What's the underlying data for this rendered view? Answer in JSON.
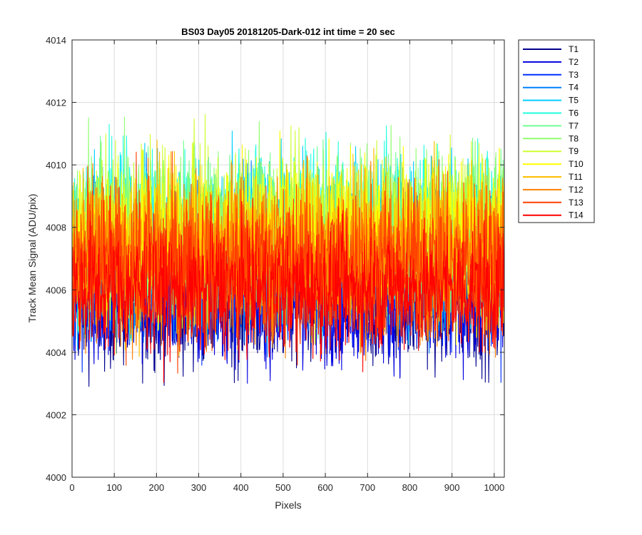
{
  "chart_data": {
    "type": "line",
    "title": "BS03 Day05 20181205-Dark-012 int time = 20 sec",
    "xlabel": "Pixels",
    "ylabel": "Track Mean Signal (ADU/pix)",
    "xlim": [
      0,
      1024
    ],
    "ylim": [
      4000,
      4014
    ],
    "xticks": [
      "0",
      "100",
      "200",
      "300",
      "400",
      "500",
      "600",
      "700",
      "800",
      "900",
      "1000"
    ],
    "yticks": [
      "4000",
      "4002",
      "4004",
      "4006",
      "4008",
      "4010",
      "4012",
      "4014"
    ],
    "grid": true,
    "legend_position": "outside-top-right",
    "n_points": 1024,
    "series": [
      {
        "name": "T1",
        "color": "#00008F",
        "mean": 4005.5,
        "spread": 1.0
      },
      {
        "name": "T2",
        "color": "#0000E0",
        "mean": 4005.6,
        "spread": 1.0
      },
      {
        "name": "T3",
        "color": "#0030FF",
        "mean": 4006.3,
        "spread": 1.1
      },
      {
        "name": "T4",
        "color": "#0080FF",
        "mean": 4007.0,
        "spread": 1.2
      },
      {
        "name": "T5",
        "color": "#00CFFF",
        "mean": 4007.6,
        "spread": 1.3
      },
      {
        "name": "T6",
        "color": "#20FFDF",
        "mean": 4007.8,
        "spread": 1.3
      },
      {
        "name": "T7",
        "color": "#70FF8F",
        "mean": 4007.7,
        "spread": 1.3
      },
      {
        "name": "T8",
        "color": "#8FFF70",
        "mean": 4007.9,
        "spread": 1.3
      },
      {
        "name": "T9",
        "color": "#CFFF30",
        "mean": 4007.8,
        "spread": 1.3
      },
      {
        "name": "T10",
        "color": "#FFFF00",
        "mean": 4007.6,
        "spread": 1.3
      },
      {
        "name": "T11",
        "color": "#FFBF00",
        "mean": 4007.3,
        "spread": 1.3
      },
      {
        "name": "T12",
        "color": "#FF8000",
        "mean": 4007.0,
        "spread": 1.3
      },
      {
        "name": "T13",
        "color": "#FF4000",
        "mean": 4006.8,
        "spread": 1.3
      },
      {
        "name": "T14",
        "color": "#FF0000",
        "mean": 4006.0,
        "spread": 1.0
      }
    ]
  }
}
